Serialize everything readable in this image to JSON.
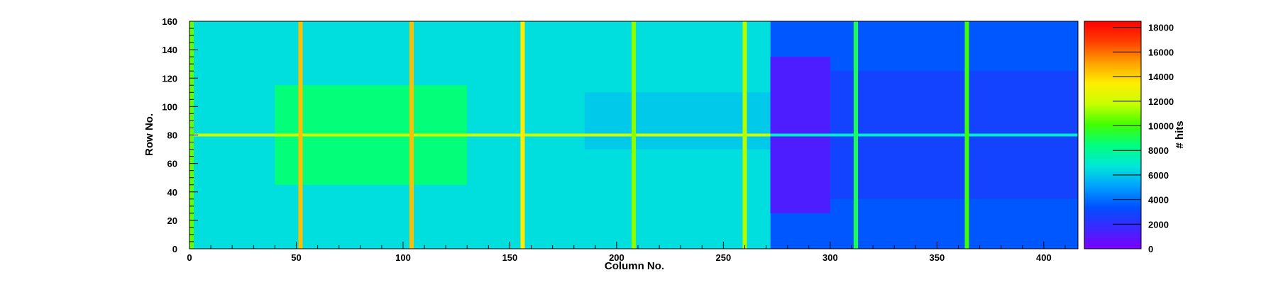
{
  "chart_data": {
    "type": "heatmap",
    "title": "",
    "xlabel": "Column No.",
    "ylabel": "Row No.",
    "zlabel": "# hits",
    "xlim": [
      0,
      416
    ],
    "ylim": [
      0,
      160
    ],
    "zlim": [
      0,
      18500
    ],
    "x_ticks": [
      0,
      50,
      100,
      150,
      200,
      250,
      300,
      350,
      400
    ],
    "y_ticks": [
      0,
      20,
      40,
      60,
      80,
      100,
      120,
      140,
      160
    ],
    "z_ticks": [
      0,
      2000,
      4000,
      6000,
      8000,
      10000,
      12000,
      14000,
      16000,
      18000
    ],
    "palette": [
      "#7a00ff",
      "#3c28ff",
      "#0050ff",
      "#00a0ff",
      "#00e8d8",
      "#00ff80",
      "#40ff00",
      "#c8ff00",
      "#ffee00",
      "#ffa000",
      "#ff4000",
      "#ff0000"
    ],
    "hot_columns": [
      {
        "x": 1,
        "hits": 10500
      },
      {
        "x": 52,
        "hits": 14500
      },
      {
        "x": 104,
        "hits": 14500
      },
      {
        "x": 156,
        "hits": 13500
      },
      {
        "x": 208,
        "hits": 11000
      },
      {
        "x": 260,
        "hits": 11500
      },
      {
        "x": 312,
        "hits": 9000
      },
      {
        "x": 364,
        "hits": 10000
      }
    ],
    "hot_rows": [
      {
        "y": 80,
        "x_range": [
          0,
          272
        ],
        "hits": 12000
      },
      {
        "y": 80,
        "x_range": [
          272,
          416
        ],
        "hits": 7000
      }
    ],
    "regions": [
      {
        "x_range": [
          0,
          272
        ],
        "y_range": [
          0,
          160
        ],
        "hits": 6500
      },
      {
        "x_range": [
          40,
          130
        ],
        "y_range": [
          45,
          115
        ],
        "hits": 8500
      },
      {
        "x_range": [
          185,
          272
        ],
        "y_range": [
          70,
          110
        ],
        "hits": 6000
      },
      {
        "x_range": [
          272,
          416
        ],
        "y_range": [
          0,
          160
        ],
        "hits": 3500
      },
      {
        "x_range": [
          272,
          300
        ],
        "y_range": [
          25,
          135
        ],
        "hits": 1200
      },
      {
        "x_range": [
          300,
          416
        ],
        "y_range": [
          35,
          125
        ],
        "hits": 2800
      }
    ]
  }
}
